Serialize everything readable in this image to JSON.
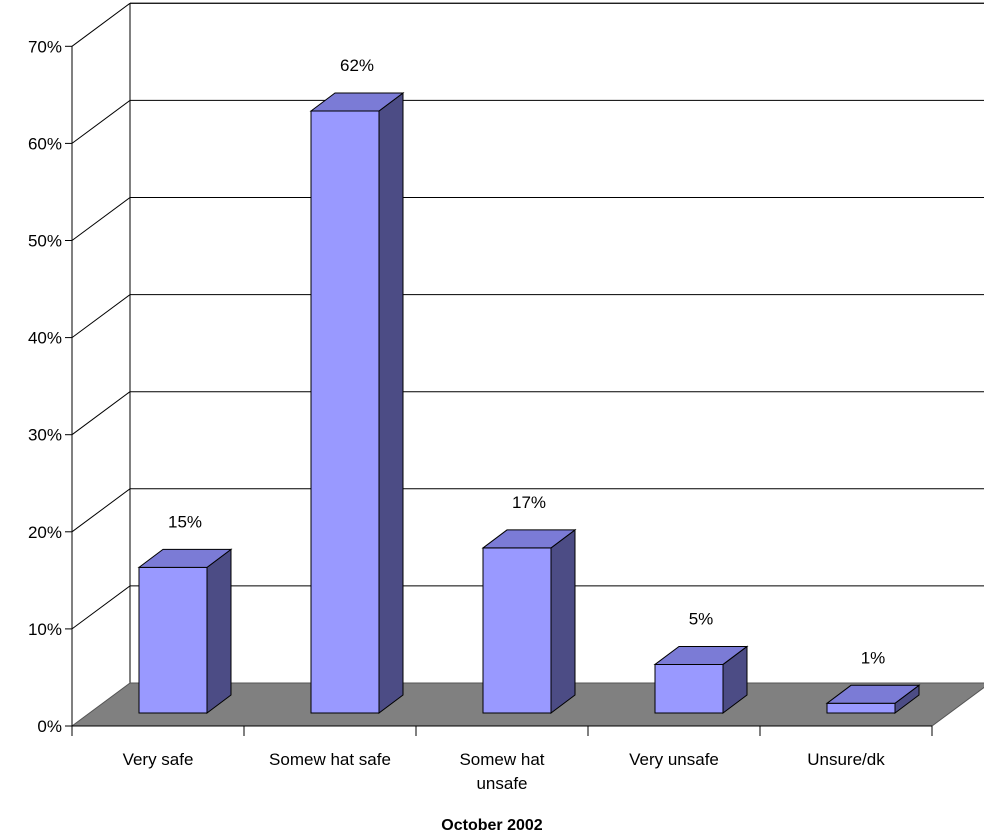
{
  "chart_data": {
    "type": "bar",
    "style": "3d-column",
    "categories": [
      "Very safe",
      "Somew hat safe",
      "Somew hat unsafe",
      "Very unsafe",
      "Unsure/dk"
    ],
    "category_lines": [
      [
        "Very safe"
      ],
      [
        "Somew hat safe"
      ],
      [
        "Somew hat",
        "unsafe"
      ],
      [
        "Very unsafe"
      ],
      [
        "Unsure/dk"
      ]
    ],
    "values": [
      15,
      62,
      17,
      5,
      1
    ],
    "data_labels": [
      "15%",
      "62%",
      "17%",
      "5%",
      "1%"
    ],
    "xlabel": "October 2002",
    "ylabel": "",
    "ylim": [
      0,
      70
    ],
    "yticks": [
      0,
      10,
      20,
      30,
      40,
      50,
      60,
      70
    ],
    "ytick_labels": [
      "0%",
      "10%",
      "20%",
      "30%",
      "40%",
      "50%",
      "60%",
      "70%"
    ],
    "grid": true,
    "legend": "none",
    "colors": {
      "bar_front": "#9999ff",
      "bar_top": "#7b7bd6",
      "bar_side": "#4c4c85",
      "floor": "#808080",
      "gridline": "#000000"
    }
  }
}
